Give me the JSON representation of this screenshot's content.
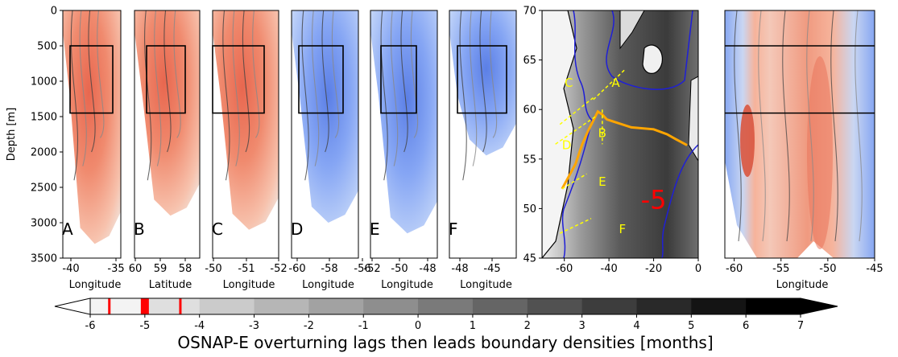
{
  "chart_data": {
    "type": "heatmap",
    "sections": [
      {
        "letter": "A",
        "xlabel": "Longitude",
        "xticks": [
          "-40",
          "-35"
        ],
        "sign": 1
      },
      {
        "letter": "B",
        "xlabel": "Latitude",
        "xticks": [
          "60",
          "59",
          "58"
        ],
        "sign": 1
      },
      {
        "letter": "C",
        "xlabel": "Longitude",
        "xticks": [
          "-50",
          "-51",
          "-52"
        ],
        "sign": 1
      },
      {
        "letter": "D",
        "xlabel": "Longitude",
        "xticks": [
          "-60",
          "-58",
          "-56"
        ],
        "sign": -1
      },
      {
        "letter": "E",
        "xlabel": "Longitude",
        "xticks": [
          "-52",
          "-50",
          "-48"
        ],
        "sign": -1
      },
      {
        "letter": "F",
        "xlabel": "Longitude",
        "xticks": [
          "-48",
          "-45"
        ],
        "sign": -1
      }
    ],
    "ylabel": "Depth [m]",
    "yticks": [
      "0",
      "500",
      "1000",
      "1500",
      "2000",
      "2500",
      "3000",
      "3500"
    ],
    "ylim": [
      0,
      3500
    ],
    "map": {
      "xticks": [
        "-40",
        "-20",
        "0"
      ],
      "yticks": [
        "45",
        "50",
        "55",
        "60",
        "65",
        "70"
      ],
      "xlim": [
        -70,
        0
      ],
      "ylim": [
        45,
        70
      ],
      "labels": [
        "A",
        "B",
        "C",
        "D",
        "E",
        "F"
      ],
      "big_label": "-5"
    },
    "wide_section": {
      "xlabel": "Longitude",
      "xticks": [
        "-60",
        "-55",
        "-50",
        "-45"
      ],
      "xlim": [
        -61,
        -45
      ]
    },
    "colorbar": {
      "ticks": [
        "-6",
        "-5",
        "-4",
        "-3",
        "-2",
        "-1",
        "0",
        "1",
        "2",
        "3",
        "4",
        "5",
        "6",
        "7"
      ],
      "min": -6,
      "max": 7,
      "markers": [
        -5.65,
        -5.0,
        -4.35
      ],
      "label": "OSNAP-E overturning lags then leads boundary densities [months]"
    }
  }
}
